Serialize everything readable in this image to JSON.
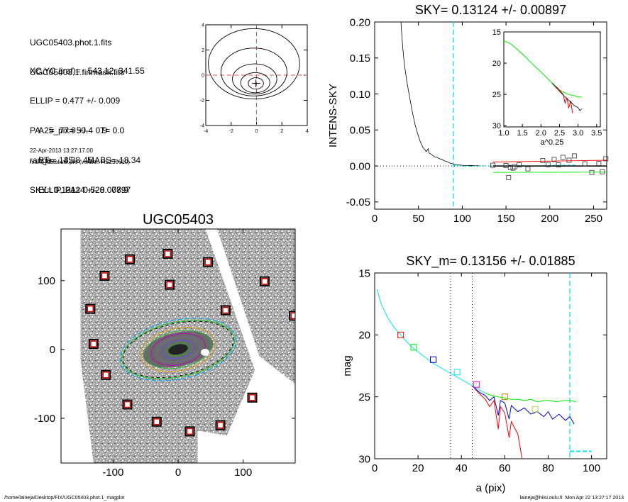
{
  "header": {
    "lines1": [
      "UGC05403.phot.1.fits",
      "UGC05403.1.finmask.fits"
    ],
    "lines2": [
      "XC,YC (iraf)=   543.12, 341.55",
      "ELLIP = 0.477 +/- 0.009",
      "PA    =  77.9 +/-   0.9",
      "range=   35.-  45.",
      "SKY= 0.13124 +/- 0.00897"
    ],
    "lines3": [
      "A25_pix= 50.4   T= 0.0",
      "BT=  14.38   MABS=-18.34",
      "ELLIP, PA= 0.528   77.9"
    ],
    "date": "22-Apr-2013 13:27:17.00",
    "program": "make_datalist0.pro (version HS230610)"
  },
  "footer": {
    "left": "/home/laineja/Desktop/FIX/UGC05403.phot.1_magplot",
    "right": "laineja@hiisi.oulu.fi  Mon Apr 22 13:27:17 2013"
  },
  "colors": {
    "sky_line": "#00e5ee",
    "red": "#ff0000",
    "green": "#00ee00",
    "blue": "#0000cd",
    "dark": "#000000"
  },
  "chart_data": [
    {
      "type": "line",
      "id": "contour",
      "xlim": [
        -4,
        4
      ],
      "ylim": [
        -4,
        4
      ],
      "xticks": [
        -4,
        -2,
        0,
        2,
        4
      ],
      "yticks": [
        -4,
        -2,
        0,
        2,
        4
      ],
      "contours": [
        {
          "rx": 0.6,
          "ry": 0.45,
          "cx": -0.05,
          "cy": -0.65
        },
        {
          "rx": 1.15,
          "ry": 0.8,
          "cx": -0.1,
          "cy": -0.6
        },
        {
          "rx": 1.75,
          "ry": 1.2,
          "cx": -0.15,
          "cy": -0.3
        },
        {
          "rx": 2.6,
          "ry": 1.9,
          "cx": -0.2,
          "cy": 0.25
        },
        {
          "rx": 3.6,
          "ry": 2.8,
          "cx": -0.2,
          "cy": 0.9
        }
      ]
    },
    {
      "type": "line",
      "id": "sky",
      "title": "SKY= 0.13124 +/- 0.00897",
      "ylabel": "INTENS-SKY",
      "xlim": [
        0,
        265
      ],
      "ylim": [
        -0.06,
        0.2
      ],
      "xticks": [
        0,
        50,
        100,
        150,
        200,
        250
      ],
      "yticks": [
        -0.05,
        0.0,
        0.05,
        0.1,
        0.15,
        0.2
      ],
      "ytick_labels": [
        "-0.05",
        "0.00",
        "0.05",
        "0.10",
        "0.15",
        "0.20"
      ],
      "sky_x": 90,
      "profile": [
        [
          30,
          0.2
        ],
        [
          32,
          0.165
        ],
        [
          34,
          0.14
        ],
        [
          37,
          0.115
        ],
        [
          40,
          0.095
        ],
        [
          43,
          0.075
        ],
        [
          46,
          0.058
        ],
        [
          49,
          0.045
        ],
        [
          52,
          0.034
        ],
        [
          55,
          0.026
        ],
        [
          57,
          0.023
        ],
        [
          59,
          0.02
        ],
        [
          61,
          0.024
        ],
        [
          62,
          0.018
        ],
        [
          65,
          0.016
        ],
        [
          68,
          0.013
        ],
        [
          71,
          0.012
        ],
        [
          74,
          0.01
        ],
        [
          77,
          0.009
        ],
        [
          80,
          0.007
        ],
        [
          83,
          0.006
        ],
        [
          86,
          0.004
        ],
        [
          89,
          0.003
        ],
        [
          92,
          0.002
        ],
        [
          96,
          0.0015
        ],
        [
          100,
          0.001
        ],
        [
          105,
          0.0005
        ],
        [
          110,
          0.0008
        ],
        [
          115,
          0.0003
        ],
        [
          120,
          0.0005
        ]
      ],
      "profile_blue": [
        [
          90,
          0.001
        ],
        [
          100,
          0.0
        ],
        [
          110,
          -0.0005
        ],
        [
          120,
          0.0003
        ],
        [
          130,
          0.0
        ],
        [
          140,
          0.0005
        ],
        [
          150,
          -0.0008
        ],
        [
          160,
          0.0004
        ],
        [
          170,
          0.0006
        ],
        [
          180,
          0.0
        ],
        [
          200,
          0.0008
        ],
        [
          220,
          0.0012
        ],
        [
          230,
          0.0015
        ]
      ],
      "squares": [
        [
          135,
          0.001
        ],
        [
          150,
          0.0005
        ],
        [
          153,
          -0.016
        ],
        [
          155,
          -0.002
        ],
        [
          158,
          -0.003
        ],
        [
          160,
          -0.001
        ],
        [
          165,
          0.0015
        ],
        [
          175,
          -0.004
        ],
        [
          192,
          0.0075
        ],
        [
          198,
          0.002
        ],
        [
          205,
          0.009
        ],
        [
          210,
          0.0015
        ],
        [
          215,
          0.012
        ],
        [
          222,
          0.008
        ],
        [
          228,
          0.014
        ],
        [
          240,
          0.003
        ],
        [
          248,
          -0.009
        ],
        [
          256,
          0.0035
        ],
        [
          260,
          -0.008
        ],
        [
          264,
          0.01
        ]
      ],
      "fit_black": [
        [
          135,
          0.0
        ],
        [
          265,
          0.0
        ]
      ],
      "fit_red": [
        [
          135,
          0.0055
        ],
        [
          265,
          0.008
        ]
      ],
      "fit_green": [
        [
          135,
          -0.009
        ],
        [
          265,
          -0.0085
        ]
      ],
      "inset": {
        "xlim": [
          1.0,
          3.6
        ],
        "ylim": [
          15,
          30.2
        ],
        "xticks": [
          1.0,
          1.5,
          2.0,
          2.5,
          3.0,
          3.5
        ],
        "xtick_labels": [
          "1.0",
          "1.5",
          "2.0",
          "2.5",
          "3.0",
          "3.5"
        ],
        "yticks": [
          15,
          20,
          25,
          30
        ],
        "xlabel": "a^0.25",
        "green": [
          [
            1.0,
            16.4
          ],
          [
            1.2,
            17.0
          ],
          [
            1.4,
            18.0
          ],
          [
            1.6,
            19.1
          ],
          [
            1.8,
            20.3
          ],
          [
            2.0,
            21.4
          ],
          [
            2.2,
            22.6
          ],
          [
            2.4,
            23.7
          ],
          [
            2.5,
            24.3
          ],
          [
            2.6,
            24.6
          ],
          [
            2.7,
            24.9
          ],
          [
            2.8,
            25.1
          ],
          [
            2.9,
            25.2
          ],
          [
            3.0,
            25.4
          ],
          [
            3.1,
            25.4
          ]
        ],
        "red": [
          [
            2.4,
            23.7
          ],
          [
            2.5,
            24.3
          ],
          [
            2.6,
            25.0
          ],
          [
            2.65,
            26.4
          ],
          [
            2.7,
            25.5
          ],
          [
            2.75,
            27.2
          ],
          [
            2.8,
            26.0
          ],
          [
            2.85,
            28.0
          ]
        ],
        "black": [
          [
            2.3,
            23.2
          ],
          [
            2.5,
            24.5
          ],
          [
            2.6,
            25.1
          ],
          [
            2.7,
            25.7
          ],
          [
            2.8,
            26.2
          ],
          [
            2.9,
            26.8
          ],
          [
            3.0,
            27.1
          ],
          [
            3.05,
            27.6
          ],
          [
            3.1,
            27.3
          ]
        ]
      }
    },
    {
      "type": "line",
      "id": "mag",
      "title": "SKY_m=  0.13156 +/- 0.01885",
      "xlabel": "a (pix)",
      "ylabel": "mag",
      "xlim": [
        0,
        107
      ],
      "ylim": [
        30,
        15
      ],
      "xticks": [
        0,
        20,
        40,
        60,
        80,
        100
      ],
      "yticks": [
        15,
        20,
        25,
        30
      ],
      "vlines_dotted": [
        35,
        45
      ],
      "sky_x": 90,
      "sky_level": [
        [
          90,
          29.4
        ],
        [
          100,
          29.4
        ]
      ],
      "cyan": [
        [
          1,
          16.3
        ],
        [
          3,
          17.5
        ],
        [
          6,
          18.6
        ],
        [
          9,
          19.4
        ],
        [
          12,
          20.0
        ],
        [
          15,
          20.6
        ],
        [
          18,
          21.1
        ],
        [
          21,
          21.5
        ],
        [
          24,
          21.9
        ],
        [
          27,
          22.3
        ],
        [
          30,
          22.6
        ],
        [
          33,
          22.9
        ],
        [
          36,
          23.2
        ],
        [
          39,
          23.5
        ],
        [
          42,
          23.8
        ],
        [
          45,
          24.1
        ],
        [
          48,
          24.4
        ],
        [
          51,
          24.7
        ]
      ],
      "green": [
        [
          51,
          24.7
        ],
        [
          54,
          24.9
        ],
        [
          57,
          25.0
        ],
        [
          60,
          25.1
        ],
        [
          63,
          25.2
        ],
        [
          66,
          25.2
        ],
        [
          69,
          25.3
        ],
        [
          72,
          25.2
        ],
        [
          75,
          25.4
        ],
        [
          78,
          25.3
        ],
        [
          81,
          25.3
        ],
        [
          84,
          25.4
        ],
        [
          87,
          25.3
        ],
        [
          90,
          25.3
        ],
        [
          93,
          25.4
        ]
      ],
      "blue": [
        [
          45,
          24.1
        ],
        [
          48,
          24.6
        ],
        [
          51,
          24.9
        ],
        [
          53,
          25.3
        ],
        [
          55,
          25.0
        ],
        [
          57,
          26.5
        ],
        [
          58,
          25.3
        ],
        [
          60,
          25.5
        ],
        [
          62,
          26.8
        ],
        [
          63,
          25.7
        ],
        [
          66,
          26.2
        ],
        [
          69,
          25.9
        ],
        [
          72,
          26.4
        ],
        [
          75,
          26.2
        ],
        [
          78,
          26.6
        ],
        [
          80,
          26.2
        ],
        [
          82,
          26.8
        ],
        [
          85,
          26.4
        ],
        [
          88,
          26.9
        ],
        [
          90,
          26.6
        ],
        [
          92,
          27.2
        ]
      ],
      "red": [
        [
          45,
          24.1
        ],
        [
          48,
          24.7
        ],
        [
          51,
          25.2
        ],
        [
          53,
          25.8
        ],
        [
          55,
          25.3
        ],
        [
          57,
          27.6
        ],
        [
          58,
          25.8
        ],
        [
          60,
          26.3
        ],
        [
          62,
          28.3
        ],
        [
          63,
          27.0
        ],
        [
          66,
          28.0
        ],
        [
          68,
          30.0
        ]
      ],
      "squares": [
        {
          "x": 12,
          "y": 20.0,
          "c": "#ff0000"
        },
        {
          "x": 18,
          "y": 21.0,
          "c": "#00ee00"
        },
        {
          "x": 27,
          "y": 22.0,
          "c": "#0000cd"
        },
        {
          "x": 38,
          "y": 23.0,
          "c": "#00e5ee"
        },
        {
          "x": 47,
          "y": 24.0,
          "c": "#ff00ff"
        },
        {
          "x": 60,
          "y": 25.0,
          "c": "#c08000"
        },
        {
          "x": 74,
          "y": 26.0,
          "c": "#b0d040"
        }
      ]
    },
    {
      "type": "scatter",
      "id": "image",
      "title": "UGC05403",
      "xlim": [
        -180,
        180
      ],
      "ylim": [
        -165,
        175
      ],
      "xticks": [
        -100,
        0,
        100
      ],
      "yticks": [
        -100,
        0,
        100
      ],
      "squares": [
        [
          -74,
          131
        ],
        [
          -16,
          139
        ],
        [
          46,
          127
        ],
        [
          -113,
          107
        ],
        [
          -13,
          94
        ],
        [
          133,
          99
        ],
        [
          -135,
          59
        ],
        [
          73,
          57
        ],
        [
          178,
          49
        ],
        [
          -130,
          8
        ],
        [
          -111,
          -37
        ],
        [
          -78,
          -80
        ],
        [
          114,
          -70
        ],
        [
          -33,
          -105
        ],
        [
          18,
          -119
        ],
        [
          65,
          -110
        ]
      ],
      "ellipse": {
        "a": 88,
        "b": 42,
        "pa": 12
      }
    }
  ]
}
